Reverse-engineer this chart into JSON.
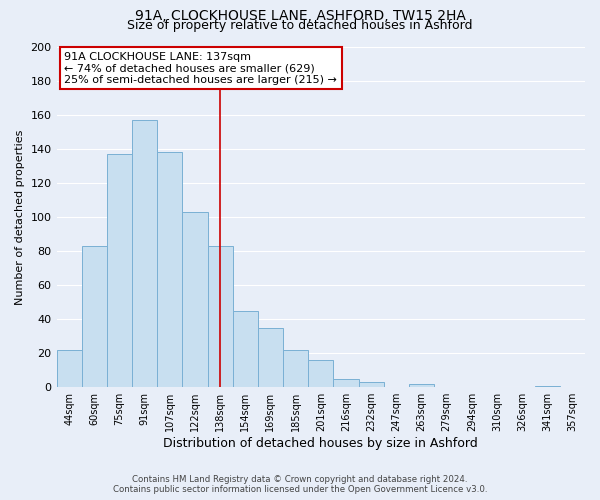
{
  "title": "91A, CLOCKHOUSE LANE, ASHFORD, TW15 2HA",
  "subtitle": "Size of property relative to detached houses in Ashford",
  "xlabel": "Distribution of detached houses by size in Ashford",
  "ylabel": "Number of detached properties",
  "bin_labels": [
    "44sqm",
    "60sqm",
    "75sqm",
    "91sqm",
    "107sqm",
    "122sqm",
    "138sqm",
    "154sqm",
    "169sqm",
    "185sqm",
    "201sqm",
    "216sqm",
    "232sqm",
    "247sqm",
    "263sqm",
    "279sqm",
    "294sqm",
    "310sqm",
    "326sqm",
    "341sqm",
    "357sqm"
  ],
  "bar_heights": [
    22,
    83,
    137,
    157,
    138,
    103,
    83,
    45,
    35,
    22,
    16,
    5,
    3,
    0,
    2,
    0,
    0,
    0,
    0,
    1,
    0
  ],
  "bar_color": "#c8dff0",
  "bar_edge_color": "#7ab0d4",
  "property_line_x": 6,
  "annotation_line1": "91A CLOCKHOUSE LANE: 137sqm",
  "annotation_line2": "← 74% of detached houses are smaller (629)",
  "annotation_line3": "25% of semi-detached houses are larger (215) →",
  "annotation_box_color": "#ffffff",
  "annotation_box_edge": "#cc0000",
  "property_line_color": "#cc0000",
  "footer_line1": "Contains HM Land Registry data © Crown copyright and database right 2024.",
  "footer_line2": "Contains public sector information licensed under the Open Government Licence v3.0.",
  "ylim": [
    0,
    200
  ],
  "yticks": [
    0,
    20,
    40,
    60,
    80,
    100,
    120,
    140,
    160,
    180,
    200
  ],
  "background_color": "#e8eef8",
  "grid_color": "#ffffff",
  "title_fontsize": 10,
  "subtitle_fontsize": 9,
  "xlabel_fontsize": 9,
  "ylabel_fontsize": 8
}
